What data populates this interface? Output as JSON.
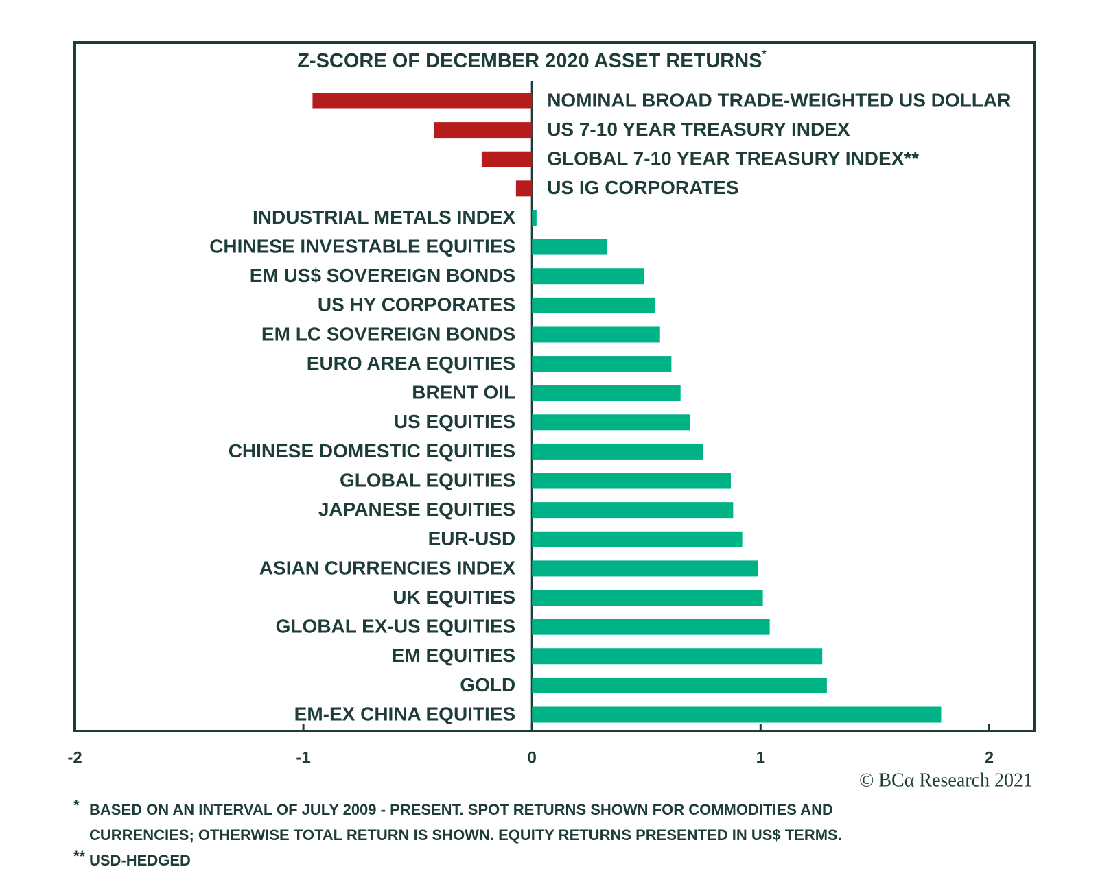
{
  "chart_data": {
    "type": "hbar",
    "title": "Z-SCORE OF DECEMBER 2020 ASSET RETURNS",
    "title_mark": "*",
    "categories": [
      "NOMINAL BROAD TRADE-WEIGHTED US DOLLAR",
      "US 7-10 YEAR TREASURY INDEX",
      "GLOBAL 7-10 YEAR TREASURY INDEX**",
      "US IG CORPORATES",
      "INDUSTRIAL METALS INDEX",
      "CHINESE INVESTABLE EQUITIES",
      "EM US$ SOVEREIGN BONDS",
      "US HY CORPORATES",
      "EM LC SOVEREIGN BONDS",
      "EURO AREA EQUITIES",
      "BRENT OIL",
      "US EQUITIES",
      "CHINESE DOMESTIC EQUITIES",
      "GLOBAL EQUITIES",
      "JAPANESE EQUITIES",
      "EUR-USD",
      "ASIAN CURRENCIES INDEX",
      "UK EQUITIES",
      "GLOBAL EX-US EQUITIES",
      "EM EQUITIES",
      "GOLD",
      "EM-EX CHINA EQUITIES"
    ],
    "values": [
      -0.96,
      -0.43,
      -0.22,
      -0.07,
      0.02,
      0.33,
      0.49,
      0.54,
      0.56,
      0.61,
      0.65,
      0.69,
      0.75,
      0.87,
      0.88,
      0.92,
      0.99,
      1.01,
      1.04,
      1.27,
      1.29,
      1.79
    ],
    "negative_color": "#b71c1c",
    "positive_color": "#00b386",
    "xlim": [
      -2,
      2.2
    ],
    "xticks": [
      -2,
      -1,
      0,
      1,
      2
    ],
    "credit": "© BCα Research 2021",
    "notes": [
      {
        "mark": "*",
        "lines": [
          "BASED ON AN INTERVAL OF JULY 2009 - PRESENT. SPOT RETURNS SHOWN FOR COMMODITIES AND",
          "CURRENCIES; OTHERWISE TOTAL RETURN IS SHOWN. EQUITY RETURNS PRESENTED IN US$ TERMS."
        ]
      },
      {
        "mark": "**",
        "lines": [
          "USD-HEDGED"
        ]
      }
    ]
  }
}
